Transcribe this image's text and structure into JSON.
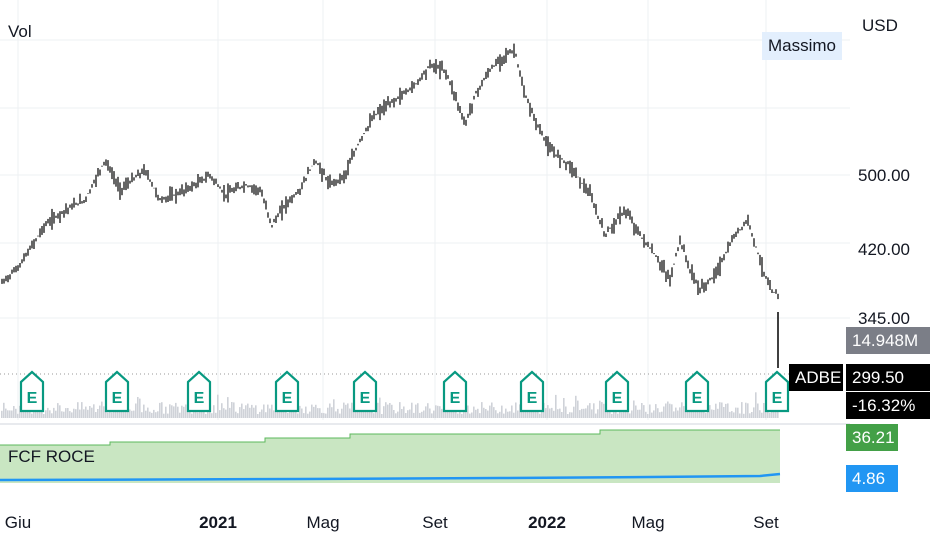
{
  "symbol": "ADBE",
  "price_axis": {
    "currency": "USD",
    "ticks": [
      "500.00",
      "420.00",
      "345.00"
    ],
    "high_label": "Massimo"
  },
  "volume": {
    "label": "Vol",
    "last_value": "14.948M"
  },
  "last_price": {
    "symbol": "ADBE",
    "price": "299.50",
    "change": "-16.32%"
  },
  "indicator": {
    "name": "FCF ROCE",
    "value_upper": "36.21",
    "value_lower": "4.86"
  },
  "time_axis": [
    {
      "label": "Giu",
      "bold": false
    },
    {
      "label": "2021",
      "bold": true
    },
    {
      "label": "Mag",
      "bold": false
    },
    {
      "label": "Set",
      "bold": false
    },
    {
      "label": "2022",
      "bold": true
    },
    {
      "label": "Mag",
      "bold": false
    },
    {
      "label": "Set",
      "bold": false
    }
  ],
  "earnings_marker_label": "E",
  "colors": {
    "candle": "#000000",
    "earnings": "#089981",
    "fcf_fill": "#c9e6c2",
    "fcf_line": "#5cb85c",
    "roce_line": "#2196f3",
    "upper_tag": "#43a047",
    "lower_tag": "#2196f3",
    "volume_tag": "#7b7e87",
    "price_tag": "#000000"
  },
  "chart_data": {
    "type": "line",
    "series": [
      {
        "values": [
          [
            "2020-06",
            370
          ],
          [
            "2020-07",
            440
          ],
          [
            "2020-08",
            460
          ],
          [
            "2020-09",
            520
          ],
          [
            "2020-10",
            470
          ],
          [
            "2020-11",
            490
          ],
          [
            "2020-12",
            500
          ],
          [
            "2021-01",
            470
          ],
          [
            "2021-02",
            480
          ],
          [
            "2021-03",
            460
          ],
          [
            "2021-04",
            500
          ],
          [
            "2021-05",
            490
          ],
          [
            "2021-06",
            560
          ],
          [
            "2021-07",
            615
          ],
          [
            "2021-08",
            660
          ],
          [
            "2021-09",
            680
          ],
          [
            "2021-10",
            580
          ],
          [
            "2021-11",
            660
          ],
          [
            "2021-12",
            690
          ],
          [
            "2022-01",
            570
          ],
          [
            "2022-02",
            470
          ],
          [
            "2022-03",
            450
          ],
          [
            "2022-04",
            400
          ],
          [
            "2022-05",
            390
          ],
          [
            "2022-06",
            370
          ],
          [
            "2022-07",
            400
          ],
          [
            "2022-08",
            440
          ],
          [
            "2022-09",
            380
          ],
          [
            "2022-09",
            300
          ]
        ]
      }
    ],
    "y_ticks": [
      500,
      420,
      345
    ],
    "x_ticks": [
      "Giu",
      "2021",
      "Mag",
      "Set",
      "2022",
      "Mag",
      "Set"
    ],
    "grid": true
  }
}
